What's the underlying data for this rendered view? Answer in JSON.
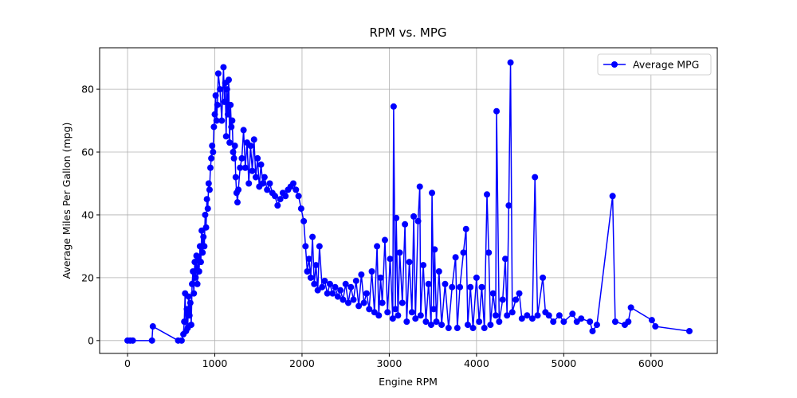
{
  "chart_data": {
    "type": "line",
    "title": "RPM vs. MPG",
    "x_label": "Engine RPM",
    "y_label": "Average Miles Per Gallon (mpg)",
    "xlim": [
      -320,
      6760
    ],
    "ylim": [
      -4.1,
      93.2
    ],
    "xticks": [
      0,
      1000,
      2000,
      3000,
      4000,
      5000,
      6000
    ],
    "yticks": [
      0,
      20,
      40,
      60,
      80
    ],
    "grid": true,
    "legend": "upper right",
    "x": [
      0,
      30,
      60,
      280,
      290,
      580,
      620,
      640,
      650,
      660,
      670,
      680,
      690,
      700,
      710,
      720,
      730,
      740,
      750,
      760,
      770,
      780,
      790,
      800,
      810,
      820,
      830,
      840,
      850,
      860,
      870,
      880,
      890,
      900,
      910,
      920,
      930,
      940,
      950,
      960,
      970,
      980,
      990,
      1000,
      1010,
      1020,
      1030,
      1040,
      1060,
      1080,
      1100,
      1110,
      1120,
      1130,
      1140,
      1150,
      1160,
      1170,
      1180,
      1190,
      1200,
      1210,
      1220,
      1230,
      1240,
      1250,
      1260,
      1270,
      1290,
      1310,
      1330,
      1350,
      1370,
      1390,
      1410,
      1430,
      1450,
      1470,
      1490,
      1510,
      1530,
      1550,
      1570,
      1600,
      1630,
      1660,
      1690,
      1720,
      1750,
      1780,
      1810,
      1840,
      1870,
      1900,
      1930,
      1960,
      1990,
      2020,
      2040,
      2060,
      2080,
      2100,
      2120,
      2140,
      2160,
      2180,
      2200,
      2230,
      2260,
      2290,
      2320,
      2350,
      2380,
      2410,
      2440,
      2470,
      2500,
      2530,
      2560,
      2590,
      2620,
      2650,
      2680,
      2710,
      2740,
      2770,
      2800,
      2830,
      2860,
      2880,
      2900,
      2920,
      2950,
      2980,
      3010,
      3040,
      3050,
      3070,
      3080,
      3100,
      3120,
      3150,
      3180,
      3200,
      3230,
      3260,
      3280,
      3300,
      3330,
      3350,
      3360,
      3390,
      3420,
      3450,
      3480,
      3490,
      3510,
      3520,
      3540,
      3570,
      3600,
      3640,
      3680,
      3720,
      3760,
      3780,
      3810,
      3850,
      3880,
      3900,
      3930,
      3960,
      4000,
      4030,
      4060,
      4090,
      4120,
      4140,
      4160,
      4190,
      4220,
      4230,
      4260,
      4300,
      4330,
      4350,
      4370,
      4390,
      4410,
      4450,
      4490,
      4520,
      4580,
      4640,
      4670,
      4700,
      4760,
      4790,
      4830,
      4880,
      4950,
      5000,
      5100,
      5150,
      5200,
      5300,
      5330,
      5380,
      5560,
      5590,
      5700,
      5740,
      5770,
      6010,
      6050,
      6440
    ],
    "series": [
      {
        "name": "Average MPG",
        "color": "#0000ff",
        "values": [
          0,
          0,
          0,
          0,
          4.5,
          0,
          0,
          2,
          6,
          15,
          3,
          10,
          4,
          14,
          8,
          12,
          5,
          18,
          22,
          15,
          25,
          20,
          27,
          18,
          26,
          22,
          30,
          25,
          35,
          28,
          33,
          30,
          40,
          36,
          45,
          42,
          50,
          48,
          55,
          58,
          62,
          60,
          68,
          72,
          78,
          70,
          75,
          85,
          80,
          70,
          87,
          76,
          82,
          65,
          80,
          72,
          83,
          63,
          75,
          68,
          70,
          60,
          58,
          62,
          52,
          47,
          44,
          48,
          55,
          58,
          67,
          55,
          63,
          50,
          62,
          54,
          64,
          52,
          58,
          49,
          56,
          50,
          52,
          48,
          50,
          47,
          46,
          43,
          45,
          47,
          46,
          48,
          49,
          50,
          48,
          46,
          42,
          38,
          30,
          22,
          26,
          20,
          33,
          18,
          24,
          16,
          30,
          17,
          19,
          15,
          18,
          15,
          17,
          14,
          16,
          13,
          18,
          12,
          17,
          13,
          19,
          11,
          21,
          12,
          15,
          10,
          22,
          9,
          30,
          8,
          20,
          12,
          32,
          9,
          26,
          7,
          74.5,
          10,
          39,
          8,
          28,
          12,
          37,
          6,
          25,
          9,
          39.5,
          7,
          38,
          49,
          8,
          24,
          6,
          18,
          5,
          47,
          10,
          29,
          6,
          22,
          5,
          18,
          4,
          17,
          26.5,
          4,
          17,
          28,
          35.5,
          5,
          17,
          4,
          20,
          6,
          17,
          4,
          46.5,
          28,
          5,
          15,
          8,
          73,
          6,
          13,
          26,
          8,
          43,
          88.5,
          9,
          13,
          15,
          7,
          8,
          7,
          52,
          8,
          20,
          9,
          8,
          6,
          8,
          6,
          8.5,
          6,
          7,
          6,
          3,
          5,
          46,
          6,
          5,
          6,
          10.5,
          6.5,
          4.5,
          3
        ]
      }
    ]
  }
}
